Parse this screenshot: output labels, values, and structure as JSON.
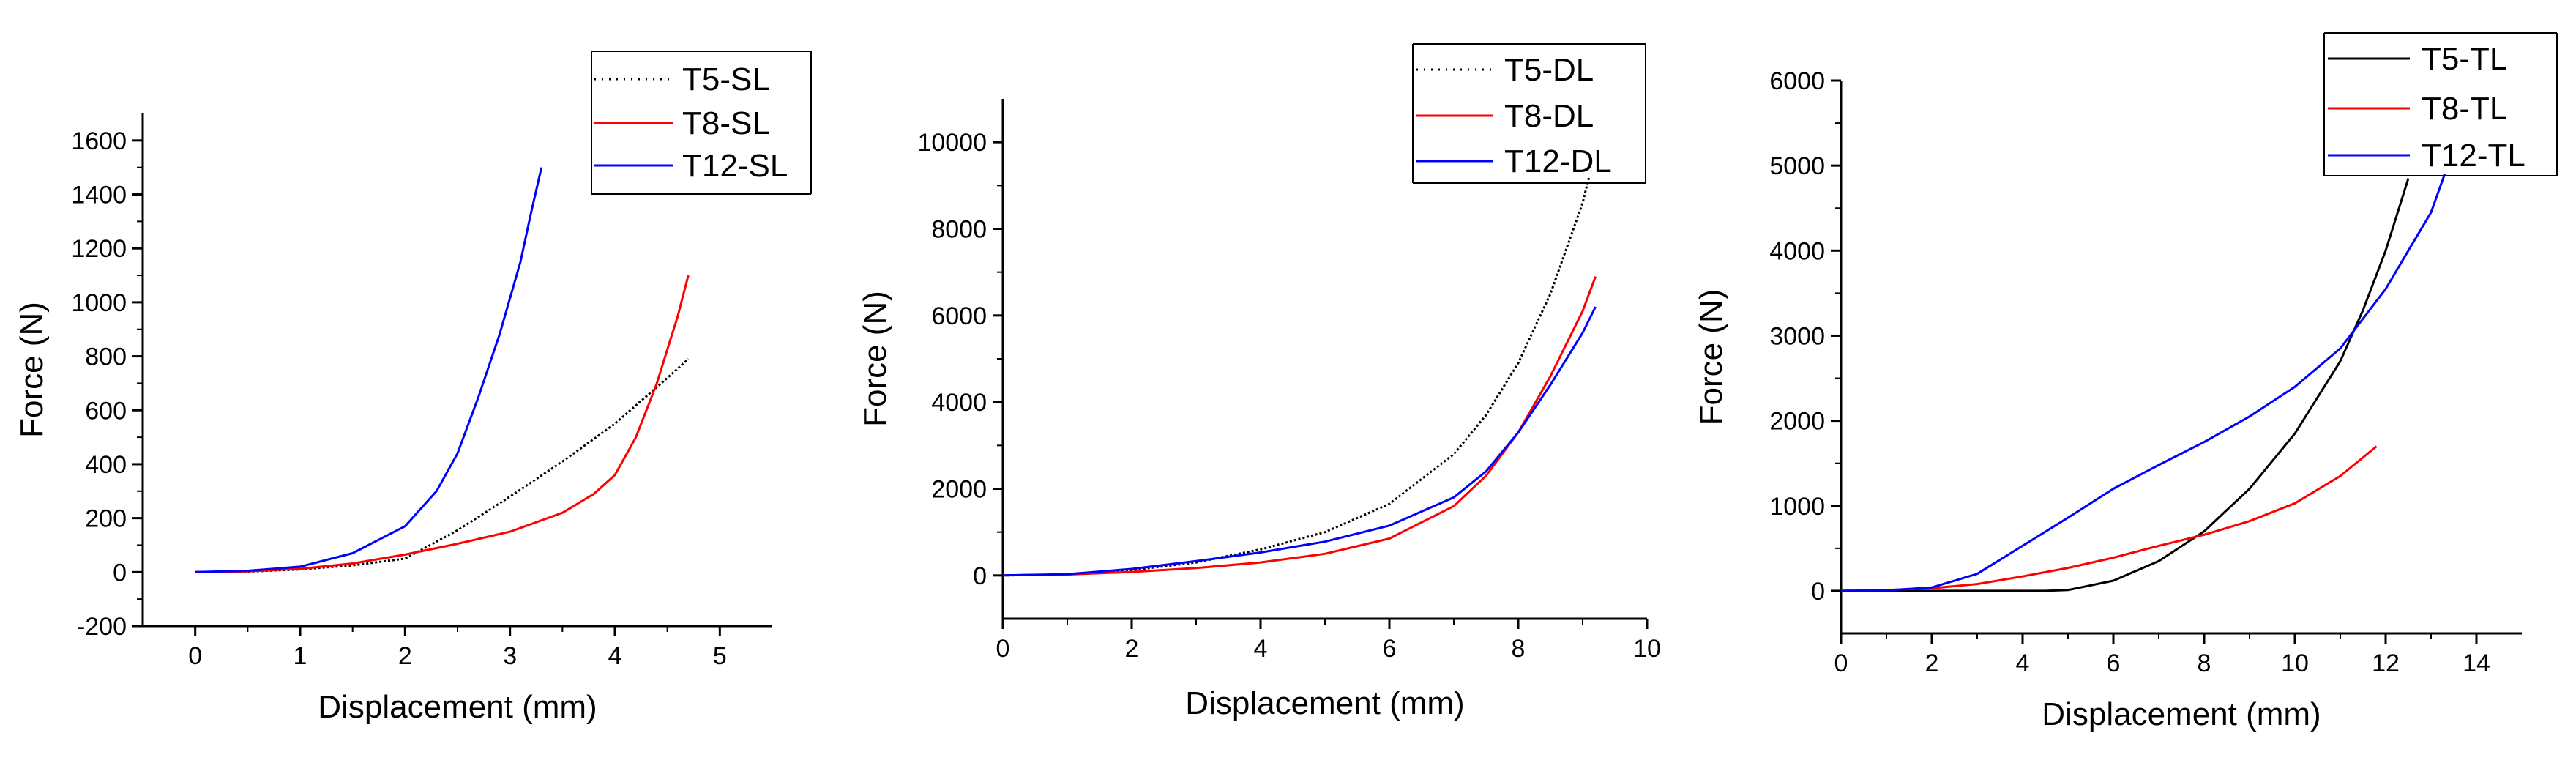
{
  "chart_data": [
    {
      "type": "line",
      "title": "",
      "xlabel": "Displacement (mm)",
      "ylabel": "Force (N)",
      "xlim": [
        -0.5,
        5.5
      ],
      "ylim": [
        -200,
        1700
      ],
      "xticks": [
        0,
        1,
        2,
        3,
        4,
        5
      ],
      "yticks": [
        -200,
        0,
        200,
        400,
        600,
        800,
        1000,
        1200,
        1400,
        1600
      ],
      "grid": false,
      "legend_position": "top-right",
      "series": [
        {
          "name": "T5-SL",
          "color": "#000000",
          "style": "dotted",
          "x": [
            0,
            0.5,
            1,
            1.5,
            2,
            2.5,
            3,
            3.5,
            4,
            4.5,
            4.7
          ],
          "y": [
            0,
            2,
            10,
            25,
            50,
            155,
            280,
            410,
            550,
            720,
            790
          ]
        },
        {
          "name": "T8-SL",
          "color": "#ff0000",
          "style": "solid",
          "x": [
            0,
            0.5,
            1,
            1.5,
            2,
            2.5,
            3,
            3.5,
            3.8,
            4,
            4.2,
            4.4,
            4.6,
            4.7
          ],
          "y": [
            0,
            3,
            12,
            32,
            65,
            105,
            150,
            220,
            290,
            360,
            500,
            700,
            950,
            1100
          ]
        },
        {
          "name": "T12-SL",
          "color": "#0000ff",
          "style": "solid",
          "x": [
            0,
            0.5,
            1,
            1.5,
            2,
            2.3,
            2.5,
            2.7,
            2.9,
            3.1,
            3.2,
            3.3
          ],
          "y": [
            0,
            5,
            20,
            70,
            170,
            300,
            440,
            650,
            880,
            1150,
            1330,
            1500
          ]
        }
      ]
    },
    {
      "type": "line",
      "title": "",
      "xlabel": "Displacement (mm)",
      "ylabel": "Force (N)",
      "xlim": [
        0,
        10
      ],
      "ylim": [
        -1000,
        11000
      ],
      "xticks": [
        0,
        2,
        4,
        6,
        8,
        10
      ],
      "yticks": [
        0,
        2000,
        4000,
        6000,
        8000,
        10000
      ],
      "grid": false,
      "legend_position": "top-right",
      "series": [
        {
          "name": "T5-DL",
          "color": "#000000",
          "style": "dotted",
          "x": [
            0,
            1,
            2,
            3,
            4,
            5,
            6,
            7,
            7.5,
            8,
            8.5,
            9,
            9.1
          ],
          "y": [
            0,
            20,
            120,
            300,
            600,
            1000,
            1650,
            2800,
            3700,
            4900,
            6500,
            8600,
            9200
          ]
        },
        {
          "name": "T8-DL",
          "color": "#ff0000",
          "style": "solid",
          "x": [
            0,
            1,
            2,
            3,
            4,
            5,
            6,
            7,
            7.5,
            8,
            8.5,
            9,
            9.2
          ],
          "y": [
            0,
            20,
            80,
            170,
            300,
            500,
            850,
            1600,
            2300,
            3300,
            4600,
            6100,
            6900
          ]
        },
        {
          "name": "T12-DL",
          "color": "#0000ff",
          "style": "solid",
          "x": [
            0,
            1,
            2,
            3,
            4,
            5,
            6,
            7,
            7.5,
            8,
            8.5,
            9,
            9.2
          ],
          "y": [
            0,
            30,
            150,
            330,
            530,
            780,
            1150,
            1800,
            2400,
            3300,
            4400,
            5600,
            6200
          ]
        }
      ]
    },
    {
      "type": "line",
      "title": "",
      "xlabel": "Displacement (mm)",
      "ylabel": "Force (N)",
      "xlim": [
        0,
        15
      ],
      "ylim": [
        -500,
        6000
      ],
      "xticks": [
        0,
        2,
        4,
        6,
        8,
        10,
        12,
        14
      ],
      "yticks": [
        0,
        1000,
        2000,
        3000,
        4000,
        5000,
        6000
      ],
      "grid": false,
      "legend_position": "top-right",
      "series": [
        {
          "name": "T5-TL",
          "color": "#000000",
          "style": "solid",
          "x": [
            0,
            2,
            3.7,
            4.5,
            5,
            6,
            7,
            8,
            9,
            10,
            11,
            11.5,
            12,
            12.5
          ],
          "y": [
            0,
            0,
            0,
            0,
            10,
            120,
            350,
            700,
            1200,
            1850,
            2700,
            3300,
            4000,
            4850
          ]
        },
        {
          "name": "T8-TL",
          "color": "#ff0000",
          "style": "solid",
          "x": [
            0,
            1,
            2,
            3,
            4,
            5,
            6,
            7,
            8,
            9,
            10,
            11,
            11.8
          ],
          "y": [
            0,
            10,
            30,
            80,
            170,
            270,
            390,
            530,
            660,
            820,
            1030,
            1350,
            1700
          ]
        },
        {
          "name": "T12-TL",
          "color": "#0000ff",
          "style": "solid",
          "x": [
            0,
            1,
            2,
            3,
            4,
            5,
            6,
            7,
            8,
            9,
            10,
            11,
            12,
            13,
            13.3
          ],
          "y": [
            0,
            5,
            40,
            200,
            530,
            860,
            1200,
            1480,
            1750,
            2050,
            2400,
            2850,
            3550,
            4450,
            4900
          ]
        }
      ]
    }
  ]
}
